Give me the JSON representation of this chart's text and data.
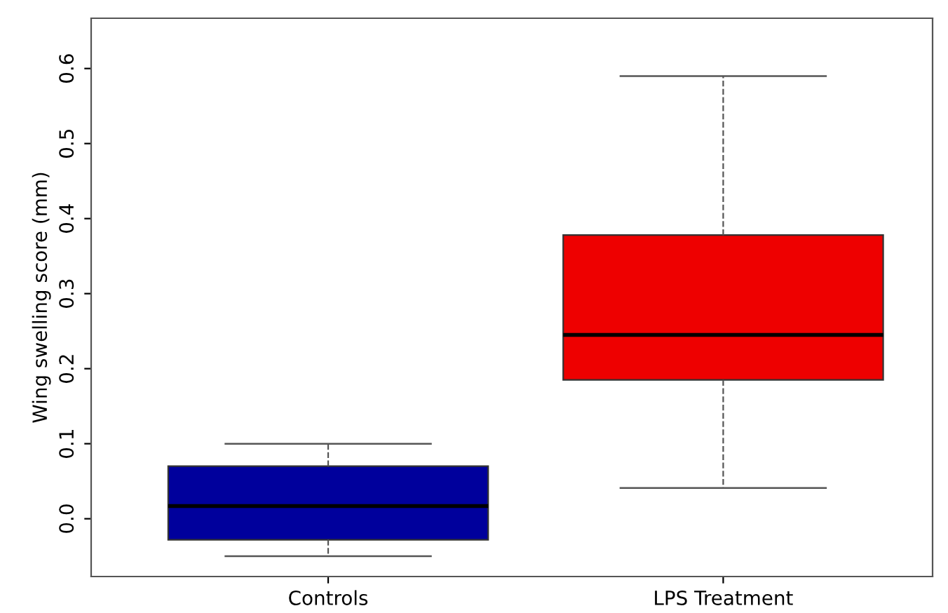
{
  "chart_data": {
    "type": "box",
    "ylabel": "Wing swelling score (mm)",
    "categories": [
      "Controls",
      "LPS Treatment"
    ],
    "colors": [
      "#00009c",
      "#ee0000"
    ],
    "boxes": [
      {
        "low": -0.05,
        "q1": -0.028,
        "median": 0.017,
        "q3": 0.07,
        "high": 0.1
      },
      {
        "low": 0.041,
        "q1": 0.185,
        "median": 0.245,
        "q3": 0.378,
        "high": 0.59
      }
    ],
    "ylim": [
      -0.077,
      0.667
    ],
    "yticks": [
      {
        "value": 0.0,
        "label": "0.0"
      },
      0.1,
      0.2,
      0.3,
      0.4,
      0.5,
      0.6
    ],
    "grid": false,
    "line_style": "dashed"
  }
}
